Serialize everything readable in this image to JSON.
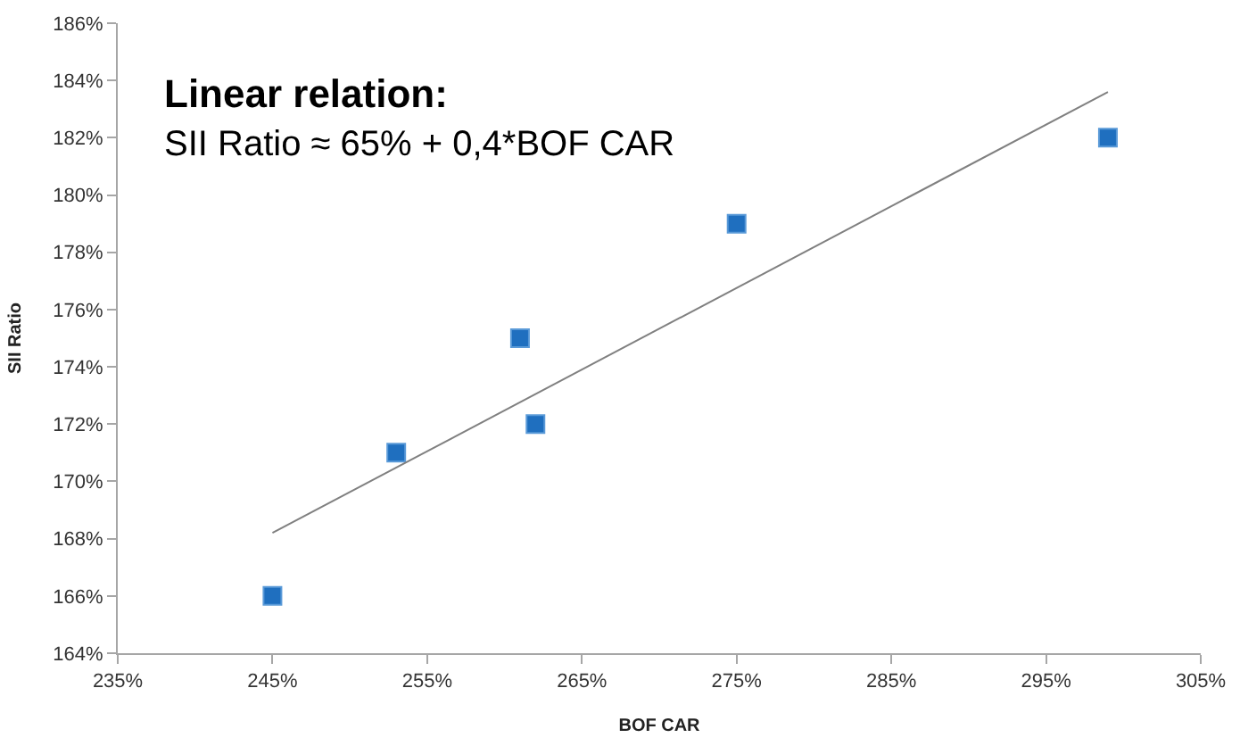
{
  "chart_data": {
    "type": "scatter",
    "xlabel": "BOF CAR",
    "ylabel": "SII Ratio",
    "annotations": [
      "**Linear relation:**",
      "SII Ratio ≈ 65% + 0,4*BOF CAR"
    ],
    "series": [
      {
        "color": "#1f6fbf",
        "marker": "square",
        "x": [
          245,
          253,
          261,
          262,
          275,
          299
        ],
        "values": [
          166,
          171,
          175,
          172,
          179,
          182
        ]
      },
      {
        "type": "line",
        "color": "#808080",
        "marker": "none",
        "line_style": "solid",
        "x": [
          245,
          299
        ],
        "values": [
          168.2,
          183.6
        ]
      }
    ],
    "xlim": [
      235,
      305
    ],
    "ylim": [
      164,
      186
    ],
    "xticks": [
      {
        "value": 235,
        "label": "235%"
      },
      {
        "value": 245,
        "label": "245%"
      },
      {
        "value": 255,
        "label": "255%"
      },
      {
        "value": 265,
        "label": "265%"
      },
      {
        "value": 275,
        "label": "275%"
      },
      {
        "value": 285,
        "label": "285%"
      },
      {
        "value": 295,
        "label": "295%"
      },
      {
        "value": 305,
        "label": "305%"
      }
    ],
    "yticks": [
      {
        "value": 164,
        "label": "164%"
      },
      {
        "value": 166,
        "label": "166%"
      },
      {
        "value": 168,
        "label": "168%"
      },
      {
        "value": 170,
        "label": "170%"
      },
      {
        "value": 172,
        "label": "172%"
      },
      {
        "value": 174,
        "label": "174%"
      },
      {
        "value": 176,
        "label": "176%"
      },
      {
        "value": 178,
        "label": "178%"
      },
      {
        "value": 180,
        "label": "180%"
      },
      {
        "value": 182,
        "label": "182%"
      },
      {
        "value": 184,
        "label": "184%"
      },
      {
        "value": 186,
        "label": "186%"
      }
    ]
  }
}
